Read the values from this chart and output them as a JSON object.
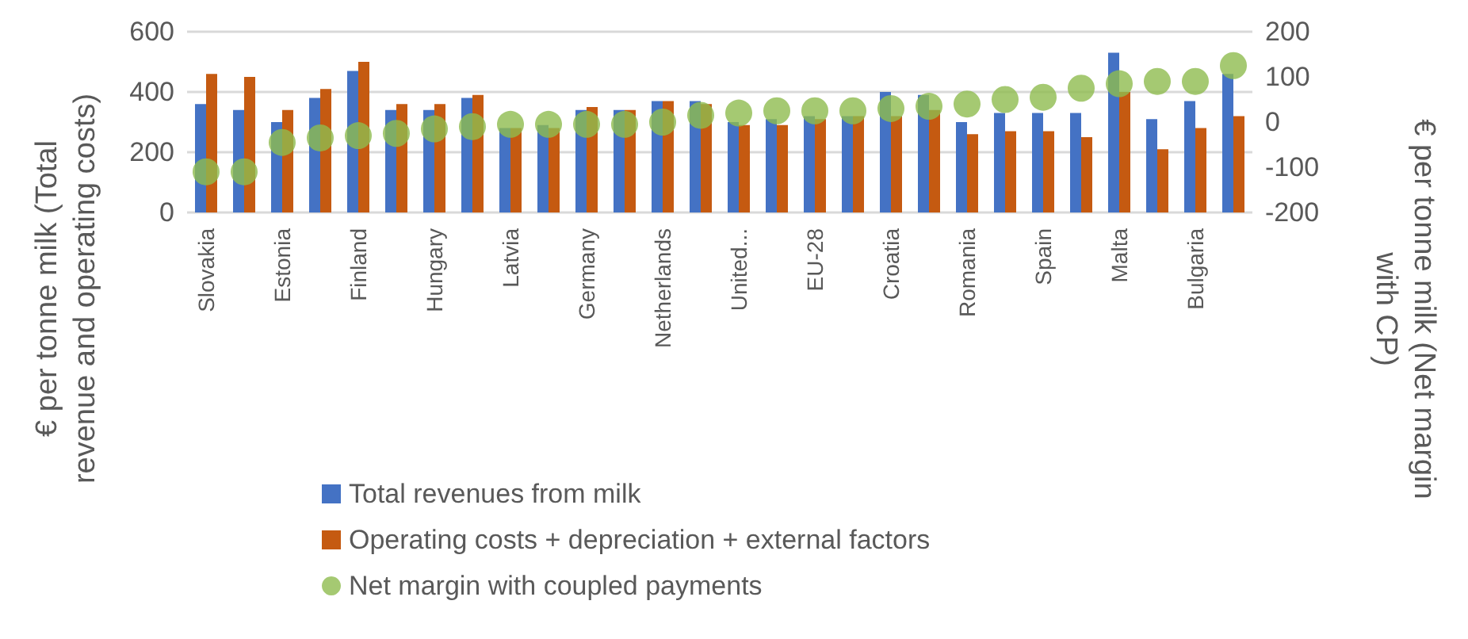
{
  "chart_data": {
    "type": "bar",
    "ylabel": "€ per tonne milk (Total revenue and operating costs)",
    "y2label": "€ per tonne milk (Net margin with CP)",
    "categories": [
      "Slovakia",
      null,
      "Estonia",
      null,
      "Finland",
      null,
      "Hungary",
      null,
      "Latvia",
      null,
      "Germany",
      null,
      "Netherlands",
      null,
      "United...",
      null,
      "EU-28",
      null,
      "Croatia",
      null,
      "Romania",
      null,
      "Spain",
      null,
      "Malta",
      null,
      "Bulgaria",
      null
    ],
    "series": [
      {
        "name": "Total revenues from milk",
        "color": "#4472c4",
        "values": [
          360,
          340,
          300,
          380,
          470,
          340,
          340,
          380,
          280,
          290,
          340,
          340,
          370,
          370,
          300,
          310,
          320,
          320,
          400,
          390,
          300,
          330,
          330,
          330,
          530,
          310,
          370,
          460
        ]
      },
      {
        "name": "Operating costs + depreciation + external factors",
        "color": "#c55a11",
        "values": [
          460,
          450,
          340,
          410,
          500,
          360,
          360,
          390,
          280,
          280,
          350,
          340,
          370,
          360,
          290,
          290,
          310,
          320,
          320,
          340,
          260,
          270,
          270,
          250,
          400,
          210,
          280,
          320
        ]
      },
      {
        "name": "Net margin with coupled payments",
        "type": "scatter",
        "axis": "y2",
        "color": "#8fbb4f",
        "values": [
          -110,
          -110,
          -45,
          -35,
          -30,
          -25,
          -15,
          -10,
          -5,
          -5,
          -5,
          -5,
          0,
          15,
          20,
          25,
          25,
          25,
          30,
          35,
          40,
          50,
          55,
          75,
          85,
          90,
          90,
          125
        ]
      }
    ],
    "ylim": [
      0,
      600
    ],
    "yticks": [
      0,
      200,
      400,
      600
    ],
    "y2lim": [
      -200,
      200
    ],
    "y2ticks": [
      -200,
      -100,
      0,
      100,
      200
    ],
    "grid": "y",
    "legend": "bottom",
    "marker": "circle"
  }
}
